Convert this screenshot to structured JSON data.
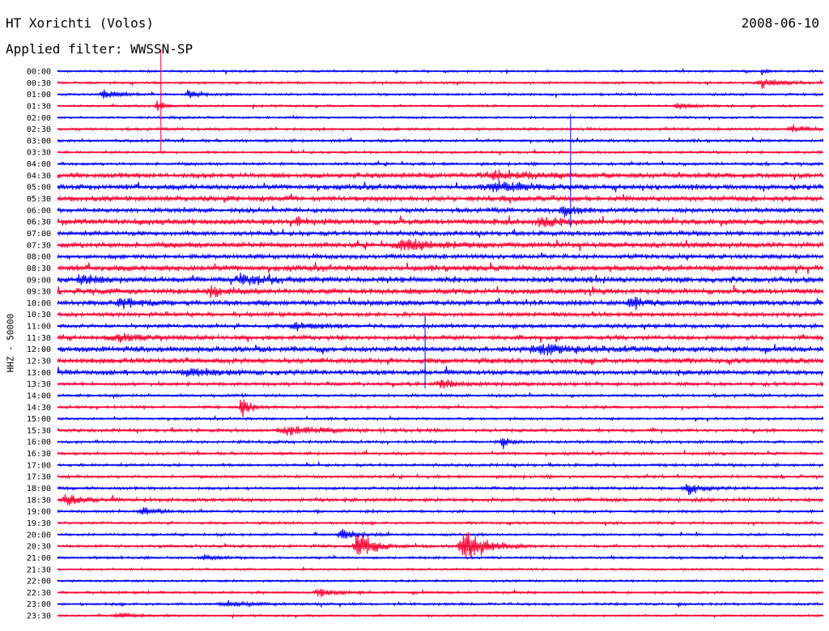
{
  "header": {
    "station": "HT Xorichti (Volos)",
    "date": "2008-06-10",
    "filter": "Applied filter: WWSSN-SP"
  },
  "chart_data": {
    "type": "line",
    "title": "HT Xorichti (Volos)",
    "ylabel": "HHZ - 50000",
    "colors": {
      "even_rows": "#0000ff",
      "odd_rows": "#ff0033"
    },
    "tick_labels": [
      "00:00",
      "00:30",
      "01:00",
      "01:30",
      "02:00",
      "02:30",
      "03:00",
      "03:30",
      "04:00",
      "04:30",
      "05:00",
      "05:30",
      "06:00",
      "06:30",
      "07:00",
      "07:30",
      "08:00",
      "08:30",
      "09:00",
      "09:30",
      "10:00",
      "10:30",
      "11:00",
      "11:30",
      "12:00",
      "12:30",
      "13:00",
      "13:30",
      "14:00",
      "14:30",
      "15:00",
      "15:30",
      "16:00",
      "16:30",
      "17:00",
      "17:30",
      "18:00",
      "18:30",
      "19:00",
      "19:30",
      "20:00",
      "20:30",
      "21:00",
      "21:30",
      "22:00",
      "22:30",
      "23:00",
      "23:30"
    ],
    "noise": [
      1.2,
      1.3,
      1.3,
      1.2,
      1.2,
      1.5,
      1.6,
      1.4,
      1.6,
      3.0,
      3.0,
      3.0,
      2.6,
      3.2,
      2.6,
      3.2,
      2.6,
      3.4,
      3.5,
      3.2,
      3.0,
      2.4,
      2.2,
      2.6,
      3.2,
      3.2,
      2.8,
      2.0,
      1.6,
      1.6,
      1.4,
      1.8,
      1.6,
      1.6,
      1.6,
      1.6,
      1.6,
      2.0,
      1.4,
      1.4,
      1.4,
      1.6,
      1.4,
      1.2,
      1.2,
      1.4,
      1.4,
      1.2
    ],
    "events": [
      {
        "row": 0,
        "pos": 0.92,
        "amp": 5,
        "width": 0.005
      },
      {
        "row": 1,
        "pos": 0.92,
        "amp": 6,
        "width": 0.03
      },
      {
        "row": 2,
        "pos": 0.06,
        "amp": 6,
        "width": 0.02
      },
      {
        "row": 2,
        "pos": 0.17,
        "amp": 4,
        "width": 0.02
      },
      {
        "row": 3,
        "pos": 0.13,
        "amp": 10,
        "width": 0.008
      },
      {
        "row": 3,
        "pos": 0.81,
        "amp": 4,
        "width": 0.02
      },
      {
        "row": 5,
        "pos": 0.96,
        "amp": 5,
        "width": 0.02
      },
      {
        "row": 9,
        "pos": 0.57,
        "amp": 5,
        "width": 0.06
      },
      {
        "row": 10,
        "pos": 0.57,
        "amp": 6,
        "width": 0.05
      },
      {
        "row": 12,
        "pos": 0.66,
        "amp": 8,
        "width": 0.02
      },
      {
        "row": 13,
        "pos": 0.63,
        "amp": 7,
        "width": 0.03
      },
      {
        "row": 13,
        "pos": 0.31,
        "amp": 8,
        "width": 0.01
      },
      {
        "row": 15,
        "pos": 0.45,
        "amp": 7,
        "width": 0.04
      },
      {
        "row": 18,
        "pos": 0.03,
        "amp": 7,
        "width": 0.02
      },
      {
        "row": 18,
        "pos": 0.24,
        "amp": 7,
        "width": 0.03
      },
      {
        "row": 19,
        "pos": 0.2,
        "amp": 9,
        "width": 0.02
      },
      {
        "row": 20,
        "pos": 0.08,
        "amp": 9,
        "width": 0.02
      },
      {
        "row": 20,
        "pos": 0.75,
        "amp": 8,
        "width": 0.02
      },
      {
        "row": 22,
        "pos": 0.31,
        "amp": 6,
        "width": 0.03
      },
      {
        "row": 23,
        "pos": 0.08,
        "amp": 6,
        "width": 0.03
      },
      {
        "row": 24,
        "pos": 0.63,
        "amp": 6,
        "width": 0.06
      },
      {
        "row": 26,
        "pos": 0.17,
        "amp": 6,
        "width": 0.03
      },
      {
        "row": 27,
        "pos": 0.5,
        "amp": 6,
        "width": 0.02
      },
      {
        "row": 29,
        "pos": 0.24,
        "amp": 16,
        "width": 0.01
      },
      {
        "row": 31,
        "pos": 0.3,
        "amp": 6,
        "width": 0.05
      },
      {
        "row": 32,
        "pos": 0.58,
        "amp": 9,
        "width": 0.01
      },
      {
        "row": 36,
        "pos": 0.82,
        "amp": 9,
        "width": 0.02
      },
      {
        "row": 37,
        "pos": 0.01,
        "amp": 9,
        "width": 0.02
      },
      {
        "row": 38,
        "pos": 0.11,
        "amp": 5,
        "width": 0.02
      },
      {
        "row": 40,
        "pos": 0.37,
        "amp": 8,
        "width": 0.02
      },
      {
        "row": 41,
        "pos": 0.39,
        "amp": 22,
        "width": 0.02
      },
      {
        "row": 41,
        "pos": 0.53,
        "amp": 26,
        "width": 0.025
      },
      {
        "row": 42,
        "pos": 0.19,
        "amp": 4,
        "width": 0.02
      },
      {
        "row": 45,
        "pos": 0.34,
        "amp": 7,
        "width": 0.02
      },
      {
        "row": 46,
        "pos": 0.22,
        "amp": 4,
        "width": 0.03
      },
      {
        "row": 47,
        "pos": 0.08,
        "amp": 4,
        "width": 0.02
      }
    ],
    "spikes": [
      {
        "row": 3,
        "pos": 0.135,
        "up": 70,
        "down": 58
      },
      {
        "row": 10,
        "pos": 0.67,
        "up": 90,
        "down": 50
      },
      {
        "row": 26,
        "pos": 0.48,
        "up": 70,
        "down": 20
      }
    ]
  }
}
